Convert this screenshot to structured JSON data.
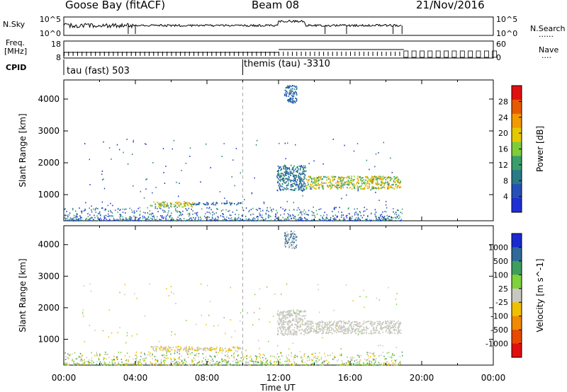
{
  "header": {
    "station": "Goose Bay (fitACF)",
    "beam": "Beam 08",
    "date": "21/Nov/2016"
  },
  "side_labels": {
    "nsky": "N.Sky",
    "freq_line1": "Freq.",
    "freq_line2": "[MHz]",
    "cpid": "CPID",
    "nsearch": "N.Search",
    "nave": "Nave",
    "dots": "......",
    "dots_short": "...."
  },
  "cpid_labels": {
    "left": "tau (fast) 503",
    "right": "themis (tau) -3310"
  },
  "colors": {
    "power_scale": [
      "#1f2fd6",
      "#2450b8",
      "#2a7a8a",
      "#3a9e6a",
      "#7fcc3a",
      "#e6c800",
      "#f29a00",
      "#e85a00",
      "#e01010"
    ],
    "velocity_scale": [
      "#1a2ad0",
      "#2f6a9a",
      "#3f9e5e",
      "#7fd23c",
      "#c8c8c0",
      "#f0c000",
      "#f08a00",
      "#e84a00",
      "#e01010"
    ]
  },
  "chart_data": [
    {
      "type": "line",
      "panel": "N.Sky / N.Search",
      "yticks": [
        "10^5",
        "10^0"
      ],
      "yticks_right": [
        "10^5",
        "10^0"
      ],
      "x_range": [
        0,
        24
      ]
    },
    {
      "type": "line",
      "panel": "Freq. / Nave",
      "yticks": [
        "18",
        "8"
      ],
      "yticks_right": [
        "60",
        "0"
      ],
      "x_range": [
        0,
        24
      ]
    },
    {
      "type": "heatmap",
      "panel": "Power",
      "ylabel": "Slant Range [km]",
      "yticks": [
        1000,
        2000,
        3000,
        4000
      ],
      "ylim": [
        180,
        4600
      ],
      "x_range": [
        0,
        24
      ],
      "colorbar": {
        "label": "Power [dB]",
        "ticks": [
          "28",
          "24",
          "20",
          "16",
          "12",
          "8",
          "4"
        ]
      },
      "features": [
        {
          "x": [
            4.8,
            7.2
          ],
          "y": [
            630,
            800
          ],
          "colors": [
            5,
            6,
            4,
            3
          ]
        },
        {
          "x": [
            7.2,
            9.9
          ],
          "y": [
            700,
            780
          ],
          "colors": [
            1,
            2
          ]
        },
        {
          "x": [
            11.9,
            13.5
          ],
          "y": [
            1150,
            1950
          ],
          "colors": [
            1,
            2,
            3
          ]
        },
        {
          "x": [
            13.5,
            18.8
          ],
          "y": [
            1200,
            1600
          ],
          "colors": [
            3,
            4,
            5,
            6
          ]
        },
        {
          "x": [
            12.3,
            13.0
          ],
          "y": [
            3900,
            4450
          ],
          "colors": [
            1,
            2
          ]
        }
      ]
    },
    {
      "type": "heatmap",
      "panel": "Velocity",
      "ylabel": "Slant Range [km]",
      "xlabel": "Time UT",
      "yticks": [
        1000,
        2000,
        3000,
        4000
      ],
      "ylim": [
        180,
        4600
      ],
      "x_range": [
        0,
        24
      ],
      "xticks": [
        "00:00",
        "04:00",
        "08:00",
        "12:00",
        "16:00",
        "20:00",
        "00:00"
      ],
      "colorbar": {
        "label": "Velocity [m s^-1]",
        "ticks": [
          "1000",
          "500",
          "100",
          "25",
          "-25",
          "-100",
          "-500",
          "-1000"
        ]
      },
      "features": [
        {
          "x": [
            4.8,
            7.2
          ],
          "y": [
            630,
            800
          ],
          "colors": [
            4,
            5
          ]
        },
        {
          "x": [
            7.2,
            9.9
          ],
          "y": [
            650,
            780
          ],
          "colors": [
            4,
            5
          ]
        },
        {
          "x": [
            11.9,
            13.5
          ],
          "y": [
            1150,
            1950
          ],
          "colors": [
            4
          ]
        },
        {
          "x": [
            13.5,
            18.8
          ],
          "y": [
            1200,
            1600
          ],
          "colors": [
            4
          ]
        },
        {
          "x": [
            12.3,
            13.0
          ],
          "y": [
            3900,
            4450
          ],
          "colors": [
            4,
            1
          ]
        }
      ]
    }
  ]
}
